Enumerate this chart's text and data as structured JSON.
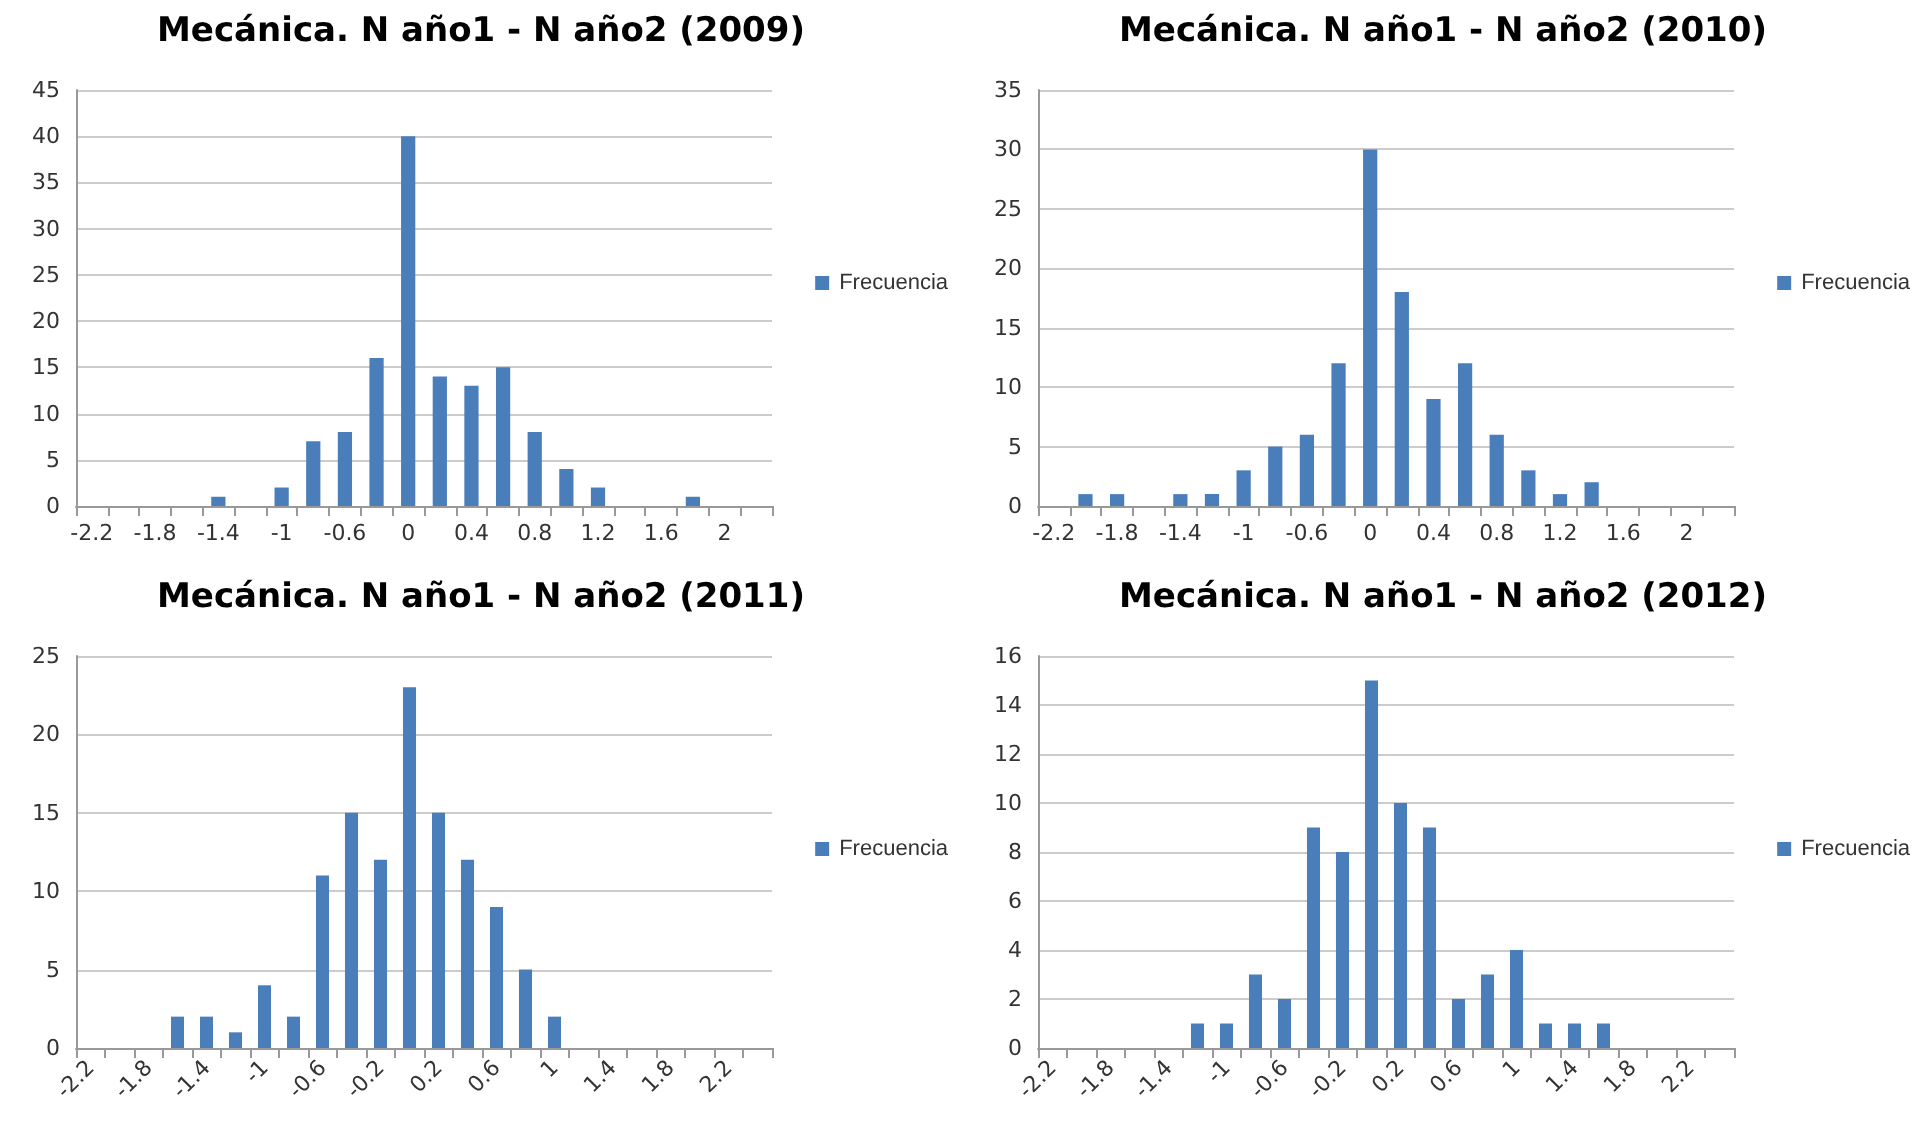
{
  "chart_data": [
    {
      "type": "bar",
      "title": "Mecánica. N año1 - N año2 (2009)",
      "categories": [
        "-2.2",
        null,
        "-1.8",
        null,
        "-1.4",
        null,
        "-1",
        null,
        "-0.6",
        null,
        "0",
        null,
        "0.4",
        null,
        "0.8",
        null,
        "1.2",
        null,
        "1.6",
        null,
        "2",
        null
      ],
      "series": [
        {
          "name": "Frecuencia",
          "color": "#4a7ebb",
          "values": [
            0,
            0,
            0,
            0,
            1,
            0,
            2,
            7,
            8,
            16,
            40,
            14,
            13,
            15,
            8,
            4,
            2,
            0,
            0,
            1,
            0,
            0
          ]
        }
      ],
      "ylim": [
        0,
        45
      ],
      "yticks": [
        0,
        5,
        10,
        15,
        20,
        25,
        30,
        35,
        40,
        45
      ],
      "grid": "y",
      "legend": "right"
    },
    {
      "type": "bar",
      "title": "Mecánica. N año1 - N año2 (2010)",
      "categories": [
        "-2.2",
        null,
        "-1.8",
        null,
        "-1.4",
        null,
        "-1",
        null,
        "-0.6",
        null,
        "0",
        null,
        "0.4",
        null,
        "0.8",
        null,
        "1.2",
        null,
        "1.6",
        null,
        "2",
        null
      ],
      "series": [
        {
          "name": "Frecuencia",
          "color": "#4a7ebb",
          "values": [
            0,
            1,
            1,
            0,
            1,
            1,
            3,
            5,
            6,
            12,
            30,
            18,
            9,
            12,
            6,
            3,
            1,
            2,
            0,
            0,
            0,
            0
          ]
        }
      ],
      "ylim": [
        0,
        35
      ],
      "yticks": [
        0,
        5,
        10,
        15,
        20,
        25,
        30,
        35
      ],
      "grid": "y",
      "legend": "right"
    },
    {
      "type": "bar",
      "title": "Mecánica. N año1 - N año2 (2011)",
      "categories": [
        "-2.2",
        null,
        "-1.8",
        null,
        "-1.4",
        null,
        "-1",
        null,
        "-0.6",
        null,
        "-0.2",
        null,
        "0.2",
        null,
        "0.6",
        null,
        "1",
        null,
        "1.4",
        null,
        "1.8",
        null,
        "2.2",
        null
      ],
      "series": [
        {
          "name": "Frecuencia",
          "color": "#4a7ebb",
          "values": [
            0,
            0,
            0,
            2,
            2,
            1,
            4,
            2,
            11,
            15,
            12,
            23,
            15,
            12,
            9,
            5,
            2,
            0,
            0,
            0,
            0,
            0,
            0,
            0
          ]
        }
      ],
      "ylim": [
        0,
        25
      ],
      "yticks": [
        0,
        5,
        10,
        15,
        20,
        25
      ],
      "grid": "y",
      "legend": "right"
    },
    {
      "type": "bar",
      "title": "Mecánica. N año1 - N año2 (2012)",
      "categories": [
        "-2.2",
        null,
        "-1.8",
        null,
        "-1.4",
        null,
        "-1",
        null,
        "-0.6",
        null,
        "-0.2",
        null,
        "0.2",
        null,
        "0.6",
        null,
        "1",
        null,
        "1.4",
        null,
        "1.8",
        null,
        "2.2",
        null
      ],
      "series": [
        {
          "name": "Frecuencia",
          "color": "#4a7ebb",
          "values": [
            0,
            0,
            0,
            0,
            0,
            1,
            1,
            3,
            2,
            9,
            8,
            15,
            10,
            9,
            2,
            3,
            4,
            1,
            1,
            1,
            0,
            0,
            0,
            0
          ]
        }
      ],
      "ylim": [
        0,
        16
      ],
      "yticks": [
        0,
        2,
        4,
        6,
        8,
        10,
        12,
        14,
        16
      ],
      "grid": "y",
      "legend": "right"
    }
  ]
}
